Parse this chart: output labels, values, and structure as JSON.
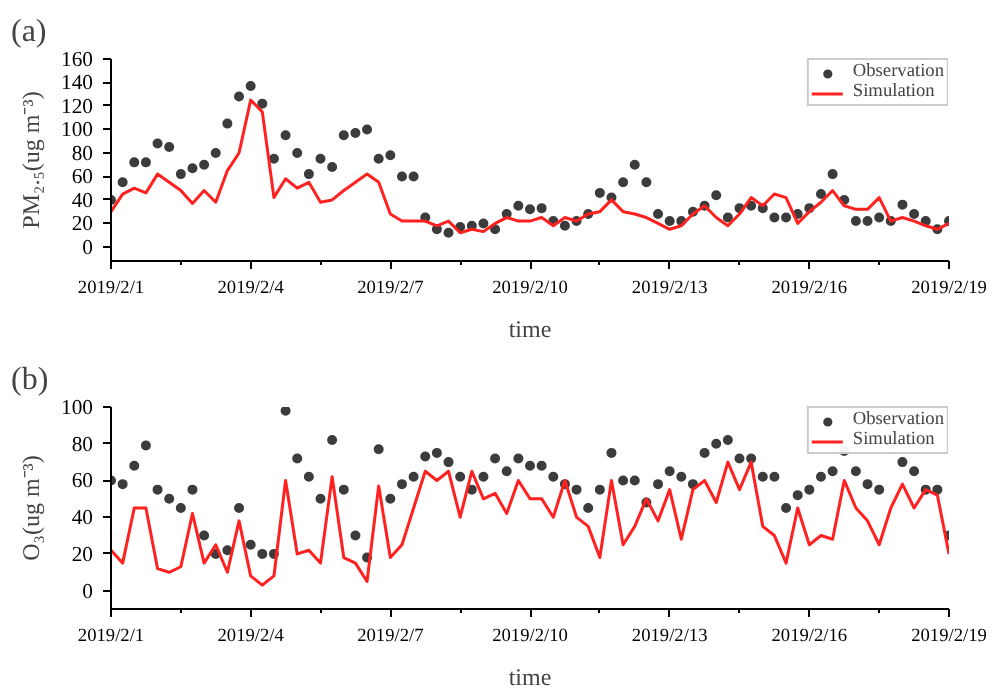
{
  "chart_data": [
    {
      "type": "line",
      "title": "(a)",
      "xlabel": "time",
      "ylabel": "PM₂.₅(ug m⁻³)",
      "xlim": [
        "2019-02-01",
        "2019-02-19"
      ],
      "ylim": [
        -12,
        160
      ],
      "xticks": [
        {
          "value": "2019-02-01",
          "label": "2019/2/1"
        },
        {
          "value": "2019-02-02T12:00",
          "label": null
        },
        {
          "value": "2019-02-04",
          "label": "2019/2/4"
        },
        {
          "value": "2019-02-05T12:00",
          "label": null
        },
        {
          "value": "2019-02-07",
          "label": "2019/2/7"
        },
        {
          "value": "2019-02-08T12:00",
          "label": null
        },
        {
          "value": "2019-02-10",
          "label": "2019/2/10"
        },
        {
          "value": "2019-02-11T12:00",
          "label": null
        },
        {
          "value": "2019-02-13",
          "label": "2019/2/13"
        },
        {
          "value": "2019-02-14T12:00",
          "label": null
        },
        {
          "value": "2019-02-16",
          "label": "2019/2/16"
        },
        {
          "value": "2019-02-17T12:00",
          "label": null
        },
        {
          "value": "2019-02-19",
          "label": "2019/2/19"
        }
      ],
      "yticks": [
        0,
        20,
        40,
        60,
        80,
        100,
        120,
        140,
        160
      ],
      "grid": false,
      "legend": "top right",
      "x": [
        "2019-02-01T00:00",
        "2019-02-01T06:00",
        "2019-02-01T12:00",
        "2019-02-01T18:00",
        "2019-02-02T00:00",
        "2019-02-02T06:00",
        "2019-02-02T12:00",
        "2019-02-02T18:00",
        "2019-02-03T00:00",
        "2019-02-03T06:00",
        "2019-02-03T12:00",
        "2019-02-03T18:00",
        "2019-02-04T00:00",
        "2019-02-04T06:00",
        "2019-02-04T12:00",
        "2019-02-04T18:00",
        "2019-02-05T00:00",
        "2019-02-05T06:00",
        "2019-02-05T12:00",
        "2019-02-05T18:00",
        "2019-02-06T00:00",
        "2019-02-06T06:00",
        "2019-02-06T12:00",
        "2019-02-06T18:00",
        "2019-02-07T00:00",
        "2019-02-07T06:00",
        "2019-02-07T12:00",
        "2019-02-07T18:00",
        "2019-02-08T00:00",
        "2019-02-08T06:00",
        "2019-02-08T12:00",
        "2019-02-08T18:00",
        "2019-02-09T00:00",
        "2019-02-09T06:00",
        "2019-02-09T12:00",
        "2019-02-09T18:00",
        "2019-02-10T00:00",
        "2019-02-10T06:00",
        "2019-02-10T12:00",
        "2019-02-10T18:00",
        "2019-02-11T00:00",
        "2019-02-11T06:00",
        "2019-02-11T12:00",
        "2019-02-11T18:00",
        "2019-02-12T00:00",
        "2019-02-12T06:00",
        "2019-02-12T12:00",
        "2019-02-12T18:00",
        "2019-02-13T00:00",
        "2019-02-13T06:00",
        "2019-02-13T12:00",
        "2019-02-13T18:00",
        "2019-02-14T00:00",
        "2019-02-14T06:00",
        "2019-02-14T12:00",
        "2019-02-14T18:00",
        "2019-02-15T00:00",
        "2019-02-15T06:00",
        "2019-02-15T12:00",
        "2019-02-15T18:00",
        "2019-02-16T00:00",
        "2019-02-16T06:00",
        "2019-02-16T12:00",
        "2019-02-16T18:00",
        "2019-02-17T00:00",
        "2019-02-17T06:00",
        "2019-02-17T12:00",
        "2019-02-17T18:00",
        "2019-02-18T00:00",
        "2019-02-18T06:00",
        "2019-02-18T12:00",
        "2019-02-18T18:00",
        "2019-02-19T00:00"
      ],
      "series": [
        {
          "name": "Observation",
          "type": "scatter",
          "marker": "circle",
          "color": "#3c3c3c",
          "values": [
            40,
            55,
            72,
            72,
            88,
            85,
            62,
            67,
            70,
            80,
            105,
            128,
            137,
            122,
            75,
            95,
            80,
            62,
            75,
            68,
            95,
            97,
            100,
            75,
            78,
            60,
            60,
            25,
            15,
            12,
            17,
            18,
            20,
            15,
            28,
            35,
            32,
            33,
            22,
            18,
            22,
            28,
            46,
            42,
            55,
            70,
            55,
            28,
            22,
            22,
            30,
            35,
            44,
            25,
            33,
            35,
            33,
            25,
            25,
            28,
            33,
            45,
            62,
            40,
            22,
            22,
            25,
            22,
            36,
            28,
            22,
            15,
            22
          ]
        },
        {
          "name": "Simulation",
          "type": "line",
          "marker": "none",
          "line_style": "solid",
          "color": "#ff2020",
          "values": [
            30,
            45,
            50,
            46,
            62,
            55,
            48,
            37,
            48,
            38,
            65,
            80,
            125,
            115,
            42,
            58,
            50,
            55,
            38,
            40,
            48,
            55,
            62,
            55,
            28,
            22,
            22,
            22,
            18,
            22,
            12,
            15,
            13,
            20,
            25,
            22,
            22,
            25,
            18,
            25,
            22,
            28,
            30,
            40,
            30,
            28,
            25,
            20,
            15,
            18,
            28,
            35,
            25,
            18,
            28,
            42,
            35,
            45,
            42,
            20,
            30,
            38,
            48,
            35,
            32,
            32,
            42,
            22,
            25,
            22,
            18,
            15,
            20
          ]
        }
      ]
    },
    {
      "type": "line",
      "title": "(b)",
      "xlabel": "time",
      "ylabel": "O₃(ug m⁻³)",
      "xlim": [
        "2019-02-01",
        "2019-02-19"
      ],
      "ylim": [
        -10,
        100
      ],
      "xticks": [
        {
          "value": "2019-02-01",
          "label": "2019/2/1"
        },
        {
          "value": "2019-02-02T12:00",
          "label": null
        },
        {
          "value": "2019-02-04",
          "label": "2019/2/4"
        },
        {
          "value": "2019-02-05T12:00",
          "label": null
        },
        {
          "value": "2019-02-07",
          "label": "2019/2/7"
        },
        {
          "value": "2019-02-08T12:00",
          "label": null
        },
        {
          "value": "2019-02-10",
          "label": "2019/2/10"
        },
        {
          "value": "2019-02-11T12:00",
          "label": null
        },
        {
          "value": "2019-02-13",
          "label": "2019/2/13"
        },
        {
          "value": "2019-02-14T12:00",
          "label": null
        },
        {
          "value": "2019-02-16",
          "label": "2019/2/16"
        },
        {
          "value": "2019-02-17T12:00",
          "label": null
        },
        {
          "value": "2019-02-19",
          "label": "2019/2/19"
        }
      ],
      "yticks": [
        0,
        20,
        40,
        60,
        80,
        100
      ],
      "grid": false,
      "legend": "top right",
      "x": [
        "2019-02-01T00:00",
        "2019-02-01T06:00",
        "2019-02-01T12:00",
        "2019-02-01T18:00",
        "2019-02-02T00:00",
        "2019-02-02T06:00",
        "2019-02-02T12:00",
        "2019-02-02T18:00",
        "2019-02-03T00:00",
        "2019-02-03T06:00",
        "2019-02-03T12:00",
        "2019-02-03T18:00",
        "2019-02-04T00:00",
        "2019-02-04T06:00",
        "2019-02-04T12:00",
        "2019-02-04T18:00",
        "2019-02-05T00:00",
        "2019-02-05T06:00",
        "2019-02-05T12:00",
        "2019-02-05T18:00",
        "2019-02-06T00:00",
        "2019-02-06T06:00",
        "2019-02-06T12:00",
        "2019-02-06T18:00",
        "2019-02-07T00:00",
        "2019-02-07T06:00",
        "2019-02-07T12:00",
        "2019-02-07T18:00",
        "2019-02-08T00:00",
        "2019-02-08T06:00",
        "2019-02-08T12:00",
        "2019-02-08T18:00",
        "2019-02-09T00:00",
        "2019-02-09T06:00",
        "2019-02-09T12:00",
        "2019-02-09T18:00",
        "2019-02-10T00:00",
        "2019-02-10T06:00",
        "2019-02-10T12:00",
        "2019-02-10T18:00",
        "2019-02-11T00:00",
        "2019-02-11T06:00",
        "2019-02-11T12:00",
        "2019-02-11T18:00",
        "2019-02-12T00:00",
        "2019-02-12T06:00",
        "2019-02-12T12:00",
        "2019-02-12T18:00",
        "2019-02-13T00:00",
        "2019-02-13T06:00",
        "2019-02-13T12:00",
        "2019-02-13T18:00",
        "2019-02-14T00:00",
        "2019-02-14T06:00",
        "2019-02-14T12:00",
        "2019-02-14T18:00",
        "2019-02-15T00:00",
        "2019-02-15T06:00",
        "2019-02-15T12:00",
        "2019-02-15T18:00",
        "2019-02-16T00:00",
        "2019-02-16T06:00",
        "2019-02-16T12:00",
        "2019-02-16T18:00",
        "2019-02-17T00:00",
        "2019-02-17T06:00",
        "2019-02-17T12:00",
        "2019-02-17T18:00",
        "2019-02-18T00:00",
        "2019-02-18T06:00",
        "2019-02-18T12:00",
        "2019-02-18T18:00",
        "2019-02-19T00:00"
      ],
      "series": [
        {
          "name": "Observation",
          "type": "scatter",
          "marker": "circle",
          "color": "#3c3c3c",
          "values": [
            60,
            58,
            68,
            79,
            55,
            50,
            45,
            55,
            30,
            20,
            22,
            45,
            25,
            20,
            20,
            98,
            72,
            62,
            50,
            82,
            55,
            30,
            18,
            77,
            50,
            58,
            62,
            73,
            75,
            70,
            62,
            55,
            62,
            72,
            65,
            72,
            68,
            68,
            62,
            58,
            55,
            45,
            55,
            75,
            60,
            60,
            48,
            58,
            65,
            62,
            58,
            75,
            80,
            82,
            72,
            72,
            62,
            62,
            45,
            52,
            55,
            62,
            65,
            76,
            65,
            58,
            55,
            80,
            70,
            65,
            55,
            55,
            30
          ]
        },
        {
          "name": "Simulation",
          "type": "line",
          "marker": "none",
          "line_style": "solid",
          "color": "#ff2020",
          "values": [
            22,
            15,
            45,
            45,
            12,
            10,
            13,
            42,
            15,
            25,
            10,
            38,
            8,
            3,
            8,
            60,
            20,
            22,
            15,
            62,
            18,
            15,
            5,
            57,
            18,
            25,
            45,
            65,
            60,
            65,
            40,
            65,
            50,
            53,
            42,
            60,
            50,
            50,
            40,
            60,
            40,
            35,
            18,
            60,
            25,
            35,
            50,
            38,
            55,
            28,
            55,
            60,
            48,
            70,
            55,
            70,
            35,
            30,
            15,
            45,
            25,
            30,
            28,
            60,
            45,
            38,
            25,
            45,
            58,
            45,
            55,
            52,
            20
          ]
        }
      ]
    }
  ]
}
